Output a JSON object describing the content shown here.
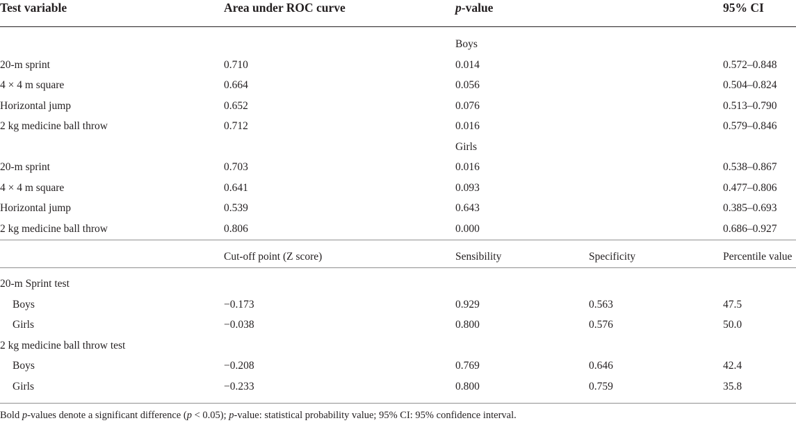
{
  "header": {
    "col1": "Test variable",
    "col2": "Area under ROC curve",
    "col3_italic": "p",
    "col3_rest": "-value",
    "col4": "95% CI"
  },
  "roc_groups": [
    {
      "label": "Boys",
      "rows": [
        {
          "variable": "20-m sprint",
          "auc": "0.710",
          "p": "0.014",
          "ci": "0.572–0.848"
        },
        {
          "variable": "4 × 4 m square",
          "auc": "0.664",
          "p": "0.056",
          "ci": "0.504–0.824"
        },
        {
          "variable": "Horizontal jump",
          "auc": "0.652",
          "p": "0.076",
          "ci": "0.513–0.790"
        },
        {
          "variable": "2 kg medicine ball throw",
          "auc": "0.712",
          "p": "0.016",
          "ci": "0.579–0.846"
        }
      ]
    },
    {
      "label": "Girls",
      "rows": [
        {
          "variable": "20-m sprint",
          "auc": "0.703",
          "p": "0.016",
          "ci": "0.538–0.867"
        },
        {
          "variable": "4 × 4 m square",
          "auc": "0.641",
          "p": "0.093",
          "ci": "0.477–0.806"
        },
        {
          "variable": "Horizontal jump",
          "auc": "0.539",
          "p": "0.643",
          "ci": "0.385–0.693"
        },
        {
          "variable": "2 kg medicine ball throw",
          "auc": "0.806",
          "p": "0.000",
          "ci": "0.686–0.927"
        }
      ]
    }
  ],
  "cutoff_header": {
    "cutoff": "Cut-off point (Z score)",
    "sensibility": "Sensibility",
    "specificity": "Specificity",
    "percentile": "Percentile value"
  },
  "cutoff_groups": [
    {
      "test": "20-m Sprint test",
      "rows": [
        {
          "sex": "Boys",
          "cutoff": "−0.173",
          "sensibility": "0.929",
          "specificity": "0.563",
          "percentile": "47.5"
        },
        {
          "sex": "Girls",
          "cutoff": "−0.038",
          "sensibility": "0.800",
          "specificity": "0.576",
          "percentile": "50.0"
        }
      ]
    },
    {
      "test": "2 kg medicine ball throw test",
      "rows": [
        {
          "sex": "Boys",
          "cutoff": "−0.208",
          "sensibility": "0.769",
          "specificity": "0.646",
          "percentile": "42.4"
        },
        {
          "sex": "Girls",
          "cutoff": "−0.233",
          "sensibility": "0.800",
          "specificity": "0.759",
          "percentile": "35.8"
        }
      ]
    }
  ],
  "footnote": {
    "pre1": "Bold ",
    "it1": "p",
    "mid1": "-values denote a significant difference (",
    "it2": "p",
    "mid2": " < 0.05); ",
    "it3": "p",
    "post": "-value: statistical probability value; 95% CI: 95% confidence interval."
  }
}
